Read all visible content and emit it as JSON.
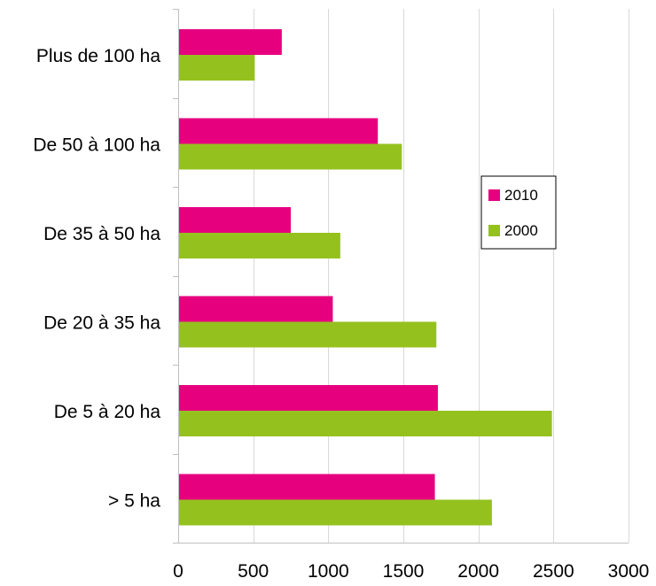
{
  "chart_data": {
    "type": "bar",
    "orientation": "horizontal",
    "categories": [
      "Plus de 100 ha",
      "De 50 à 100 ha",
      "De 35 à 50 ha",
      "De 20 à 35 ha",
      "De 5 à 20 ha",
      "> 5 ha"
    ],
    "series": [
      {
        "name": "2010",
        "color": "#e6007e",
        "values": [
          690,
          1330,
          750,
          1030,
          1730,
          1710
        ]
      },
      {
        "name": "2000",
        "color": "#95c11f",
        "values": [
          510,
          1490,
          1080,
          1720,
          2490,
          2090
        ]
      }
    ],
    "xlim": [
      0,
      3000
    ],
    "x_ticks": [
      "0",
      "500",
      "1000",
      "1500",
      "2000",
      "2500",
      "3000"
    ],
    "grid": true,
    "legend_position": "right"
  }
}
